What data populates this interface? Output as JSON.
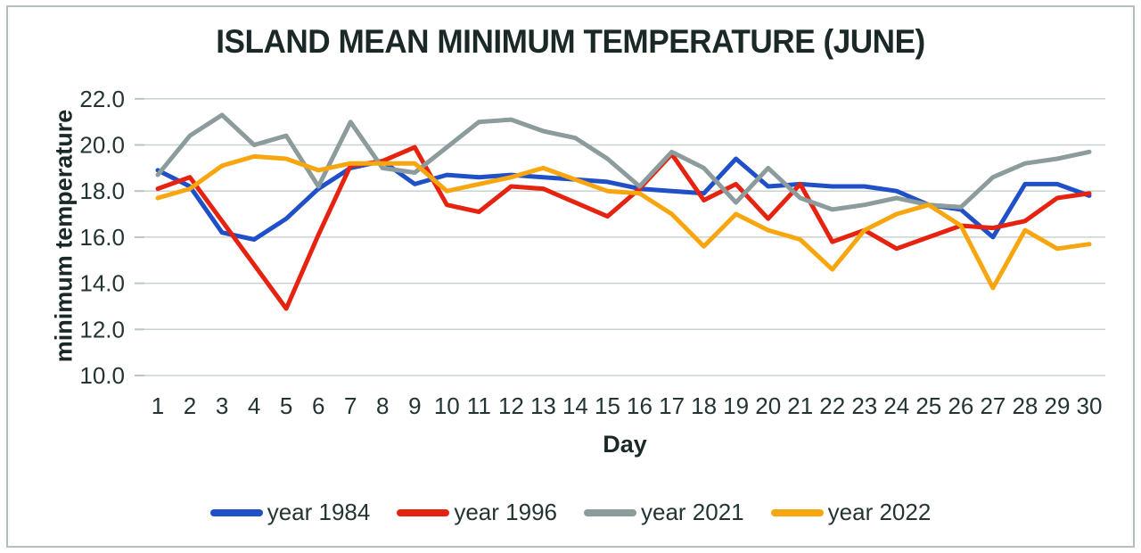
{
  "frame": {
    "background": "#ffffff",
    "border_color": "#b5bebe"
  },
  "chart_data": {
    "type": "line",
    "title": "ISLAND MEAN MINIMUM TEMPERATURE (JUNE)",
    "xlabel": "Day",
    "ylabel": "minimum temperature",
    "ylim": [
      10,
      22
    ],
    "grid": true,
    "legend_position": "bottom",
    "gridline_color": "#c9d2d2",
    "tick_color": "#b9c4c4",
    "text_color": "#243434",
    "title_color": "#1b2828",
    "y_tick_labels": [
      "22.0",
      "20.0",
      "18.0",
      "16.0",
      "14.0",
      "12.0",
      "10.0"
    ],
    "x_tick_labels": [
      "1",
      "2",
      "3",
      "4",
      "5",
      "6",
      "7",
      "8",
      "9",
      "10",
      "11",
      "12",
      "13",
      "14",
      "15",
      "16",
      "17",
      "18",
      "19",
      "20",
      "21",
      "22",
      "23",
      "24",
      "25",
      "26",
      "27",
      "28",
      "29",
      "30"
    ],
    "series": [
      {
        "name": "year 1984",
        "color": "#2050c8",
        "values": [
          18.9,
          18.2,
          16.2,
          15.9,
          16.8,
          18.1,
          19.0,
          19.3,
          18.3,
          18.7,
          18.6,
          18.7,
          18.6,
          18.5,
          18.4,
          18.1,
          18.0,
          17.9,
          19.4,
          18.2,
          18.3,
          18.2,
          18.2,
          18.0,
          17.4,
          17.2,
          16.0,
          18.3,
          18.3,
          17.8
        ]
      },
      {
        "name": "year 1996",
        "color": "#e62310",
        "values": [
          18.1,
          18.6,
          16.7,
          14.8,
          12.9,
          16.1,
          19.1,
          19.3,
          19.9,
          17.4,
          17.1,
          18.2,
          18.1,
          17.5,
          16.9,
          18.1,
          19.6,
          17.6,
          18.3,
          16.8,
          18.3,
          15.8,
          16.3,
          15.5,
          16.0,
          16.5,
          16.4,
          16.7,
          17.7,
          17.9
        ]
      },
      {
        "name": "year 2021",
        "color": "#8c9b9b",
        "values": [
          18.7,
          20.4,
          21.3,
          20.0,
          20.4,
          18.2,
          21.0,
          19.0,
          18.8,
          19.9,
          21.0,
          21.1,
          20.6,
          20.3,
          19.4,
          18.2,
          19.7,
          19.0,
          17.5,
          19.0,
          17.7,
          17.2,
          17.4,
          17.7,
          17.4,
          17.3,
          18.6,
          19.2,
          19.4,
          19.7
        ]
      },
      {
        "name": "year 2022",
        "color": "#f7a60f",
        "values": [
          17.7,
          18.1,
          19.1,
          19.5,
          19.4,
          18.9,
          19.2,
          19.2,
          19.2,
          18.0,
          18.3,
          18.6,
          19.0,
          18.5,
          18.0,
          17.9,
          17.0,
          15.6,
          17.0,
          16.3,
          15.9,
          14.6,
          16.3,
          17.0,
          17.4,
          16.5,
          13.8,
          16.3,
          15.5,
          15.7
        ]
      }
    ]
  }
}
